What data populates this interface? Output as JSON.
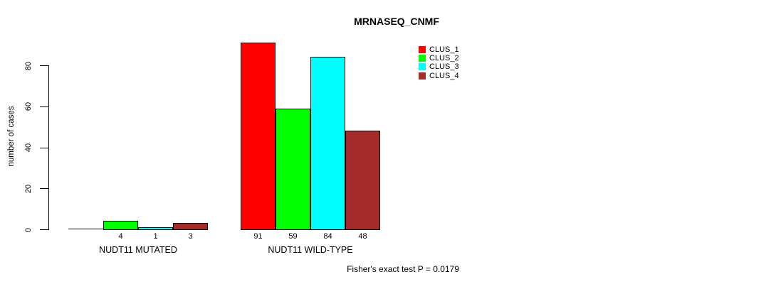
{
  "chart_data": {
    "type": "bar",
    "title": "MRNASEQ_CNMF",
    "ylabel": "number of cases",
    "xlabel": "",
    "groups": [
      "NUDT11 MUTATED",
      "NUDT11 WILD-TYPE"
    ],
    "series": [
      {
        "name": "CLUS_1",
        "color": "#FF0000",
        "values": [
          0,
          91
        ]
      },
      {
        "name": "CLUS_2",
        "color": "#00FF00",
        "values": [
          4,
          59
        ]
      },
      {
        "name": "CLUS_3",
        "color": "#00FFFF",
        "values": [
          1,
          84
        ]
      },
      {
        "name": "CLUS_4",
        "color": "#A52A2A",
        "values": [
          3,
          48
        ]
      }
    ],
    "bar_value_labels": [
      [
        "",
        "4",
        "1",
        "3"
      ],
      [
        "91",
        "59",
        "84",
        "48"
      ]
    ],
    "yticks": [
      "0",
      "20",
      "40",
      "60",
      "80"
    ],
    "ylim": [
      0,
      91
    ],
    "grid": false,
    "legend_position": "top-right",
    "legend_items": [
      "CLUS_1",
      "CLUS_2",
      "CLUS_3",
      "CLUS_4"
    ],
    "annotation": "Fisher's exact test P = 0.0179"
  },
  "colors": {
    "axis": "#000000",
    "text": "#000000",
    "background": "#FFFFFF"
  }
}
